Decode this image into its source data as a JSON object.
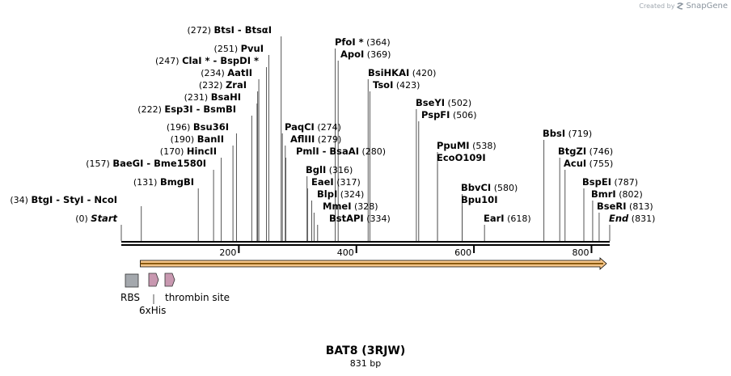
{
  "watermark": {
    "prefix": "Created by",
    "brand": "SnapGene"
  },
  "map": {
    "name": "BAT8 (3RJW)",
    "length_label": "831 bp",
    "length_bp": 831,
    "ticks": [
      {
        "pos": 200,
        "label": "200"
      },
      {
        "pos": 400,
        "label": "400"
      },
      {
        "pos": 600,
        "label": "600"
      },
      {
        "pos": 800,
        "label": "800"
      }
    ],
    "colors": {
      "orf_fill": "#f6c68a",
      "orf_stroke": "#8a5a10",
      "rbs": "#a4a8ad",
      "his": "#c898b0",
      "thrombin": "#c898b0"
    }
  },
  "sites": [
    {
      "parts": [
        "BtgI",
        "StyI",
        "NcoI"
      ],
      "pos": 34,
      "pos_label": "(34)",
      "num_side": "left"
    },
    {
      "parts": [
        "Start"
      ],
      "pos": 0,
      "pos_label": "(0)",
      "num_side": "left",
      "italic": true
    },
    {
      "parts": [
        "BmgBI"
      ],
      "pos": 131,
      "pos_label": "(131)",
      "num_side": "left"
    },
    {
      "parts": [
        "BaeGI",
        "Bme1580I"
      ],
      "pos": 157,
      "pos_label": "(157)",
      "num_side": "left"
    },
    {
      "parts": [
        "HincII"
      ],
      "pos": 170,
      "pos_label": "(170)",
      "num_side": "left"
    },
    {
      "parts": [
        "BanII"
      ],
      "pos": 190,
      "pos_label": "(190)",
      "num_side": "left"
    },
    {
      "parts": [
        "Bsu36I"
      ],
      "pos": 196,
      "pos_label": "(196)",
      "num_side": "left"
    },
    {
      "parts": [
        "Esp3I",
        "BsmBI"
      ],
      "pos": 222,
      "pos_label": "(222)",
      "num_side": "left"
    },
    {
      "parts": [
        "BsaHI"
      ],
      "pos": 231,
      "pos_label": "(231)",
      "num_side": "left"
    },
    {
      "parts": [
        "ZraI"
      ],
      "pos": 232,
      "pos_label": "(232)",
      "num_side": "left"
    },
    {
      "parts": [
        "AatII"
      ],
      "pos": 234,
      "pos_label": "(234)",
      "num_side": "left"
    },
    {
      "parts": [
        "ClaI *",
        "BspDI *"
      ],
      "pos": 247,
      "pos_label": "(247)",
      "num_side": "left"
    },
    {
      "parts": [
        "PvuI"
      ],
      "pos": 251,
      "pos_label": "(251)",
      "num_side": "left"
    },
    {
      "parts": [
        "BtsI",
        "BtsαI"
      ],
      "pos": 272,
      "pos_label": "(272)",
      "num_side": "left"
    },
    {
      "parts": [
        "PaqCI"
      ],
      "pos": 274,
      "pos_label": "(274)",
      "num_side": "right"
    },
    {
      "parts": [
        "AflIII"
      ],
      "pos": 279,
      "pos_label": "(279)",
      "num_side": "right"
    },
    {
      "parts": [
        "PmlI",
        "BsaAI"
      ],
      "pos": 280,
      "pos_label": "(280)",
      "num_side": "right"
    },
    {
      "parts": [
        "BglI"
      ],
      "pos": 316,
      "pos_label": "(316)",
      "num_side": "right"
    },
    {
      "parts": [
        "EaeI"
      ],
      "pos": 317,
      "pos_label": "(317)",
      "num_side": "right"
    },
    {
      "parts": [
        "BlpI"
      ],
      "pos": 324,
      "pos_label": "(324)",
      "num_side": "right"
    },
    {
      "parts": [
        "MmeI"
      ],
      "pos": 328,
      "pos_label": "(328)",
      "num_side": "right"
    },
    {
      "parts": [
        "BstAPI"
      ],
      "pos": 334,
      "pos_label": "(334)",
      "num_side": "right"
    },
    {
      "parts": [
        "PfoI *"
      ],
      "pos": 364,
      "pos_label": "(364)",
      "num_side": "right"
    },
    {
      "parts": [
        "ApoI"
      ],
      "pos": 369,
      "pos_label": "(369)",
      "num_side": "right"
    },
    {
      "parts": [
        "BsiHKAI"
      ],
      "pos": 420,
      "pos_label": "(420)",
      "num_side": "right"
    },
    {
      "parts": [
        "TsoI"
      ],
      "pos": 423,
      "pos_label": "(423)",
      "num_side": "right"
    },
    {
      "parts": [
        "BseYI"
      ],
      "pos": 502,
      "pos_label": "(502)",
      "num_side": "right"
    },
    {
      "parts": [
        "PspFI"
      ],
      "pos": 506,
      "pos_label": "(506)",
      "num_side": "right"
    },
    {
      "parts": [
        "PpuMI"
      ],
      "pos": 538,
      "pos_label": "(538)",
      "num_side": "right"
    },
    {
      "parts": [
        "EcoO109I"
      ],
      "pos": 538,
      "pos_label": "",
      "num_side": "right"
    },
    {
      "parts": [
        "BbvCI"
      ],
      "pos": 580,
      "pos_label": "(580)",
      "num_side": "right"
    },
    {
      "parts": [
        "Bpu10I"
      ],
      "pos": 580,
      "pos_label": "",
      "num_side": "right"
    },
    {
      "parts": [
        "EarI"
      ],
      "pos": 618,
      "pos_label": "(618)",
      "num_side": "right"
    },
    {
      "parts": [
        "BbsI"
      ],
      "pos": 719,
      "pos_label": "(719)",
      "num_side": "right"
    },
    {
      "parts": [
        "BtgZI"
      ],
      "pos": 746,
      "pos_label": "(746)",
      "num_side": "right"
    },
    {
      "parts": [
        "AcuI"
      ],
      "pos": 755,
      "pos_label": "(755)",
      "num_side": "right"
    },
    {
      "parts": [
        "BspEI"
      ],
      "pos": 787,
      "pos_label": "(787)",
      "num_side": "right"
    },
    {
      "parts": [
        "BmrI"
      ],
      "pos": 802,
      "pos_label": "(802)",
      "num_side": "right"
    },
    {
      "parts": [
        "BseRI"
      ],
      "pos": 813,
      "pos_label": "(813)",
      "num_side": "right"
    },
    {
      "parts": [
        "End"
      ],
      "pos": 831,
      "pos_label": "(831)",
      "num_side": "right",
      "italic": true
    }
  ],
  "features": [
    {
      "name": "ORF",
      "type": "orf",
      "start": 35,
      "end": 831,
      "label": ""
    },
    {
      "name": "RBS",
      "type": "rbs",
      "label": "RBS"
    },
    {
      "name": "6xHis",
      "type": "his",
      "label": "6xHis"
    },
    {
      "name": "thrombin site",
      "type": "thrombin",
      "label": "thrombin site"
    }
  ]
}
